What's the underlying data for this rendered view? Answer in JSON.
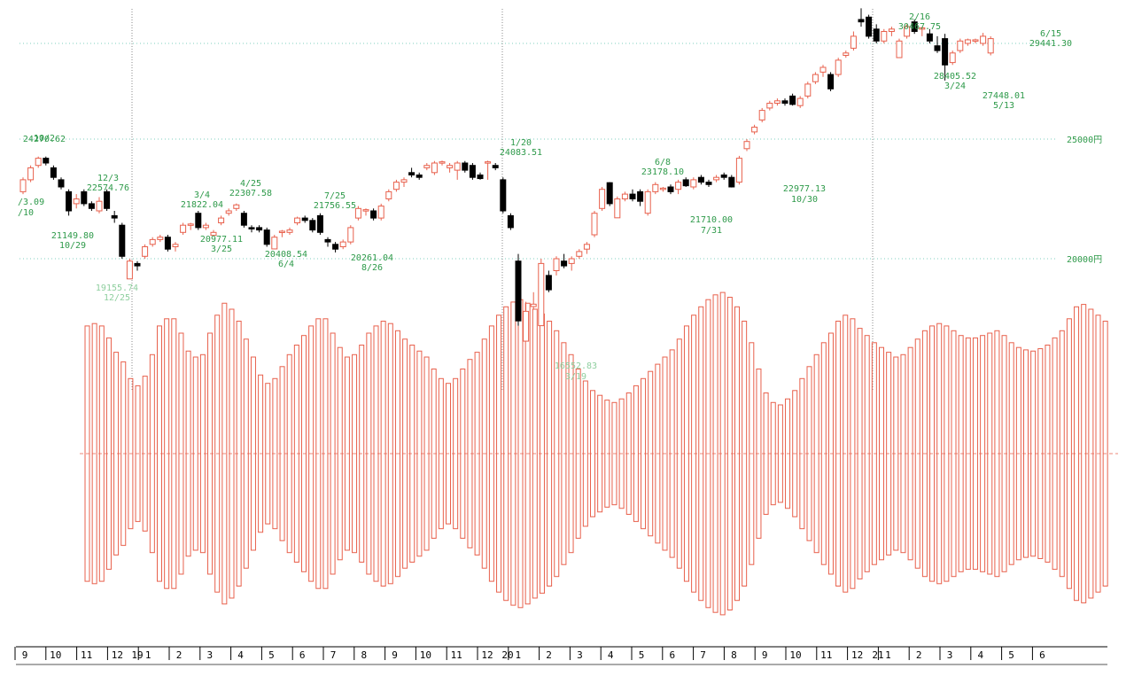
{
  "chart_data": {
    "type": "candlestick",
    "price_axis": {
      "ticks": [
        {
          "value": 25000,
          "label": "25000円"
        },
        {
          "value": 20000,
          "label": "20000円"
        }
      ],
      "extra_gridline_value": 29000
    },
    "year_labels": [
      "19",
      "20",
      "21"
    ],
    "month_labels": [
      "9",
      "10",
      "11",
      "12",
      "1",
      "2",
      "3",
      "4",
      "5",
      "6",
      "7",
      "8",
      "9",
      "10",
      "11",
      "12",
      "1",
      "2",
      "3",
      "4",
      "5",
      "6",
      "7",
      "8",
      "9",
      "10",
      "11",
      "12",
      "1",
      "2",
      "3",
      "4",
      "5",
      "6"
    ],
    "series": [
      {
        "name": "weekly candles",
        "candles": [
          [
            22800,
            23400,
            22700,
            23300
          ],
          [
            23300,
            23900,
            23200,
            23800
          ],
          [
            23900,
            24271,
            23800,
            24200
          ],
          [
            24200,
            24271,
            23900,
            24000
          ],
          [
            23800,
            23900,
            23300,
            23400
          ],
          [
            23300,
            23400,
            22900,
            23000
          ],
          [
            22800,
            22900,
            21800,
            22000
          ],
          [
            22300,
            22700,
            22100,
            22500
          ],
          [
            22800,
            22900,
            22200,
            22300
          ],
          [
            22300,
            22400,
            22000,
            22100
          ],
          [
            22000,
            22575,
            21900,
            22400
          ],
          [
            22800,
            22900,
            22000,
            22100
          ],
          [
            21800,
            22000,
            21500,
            21700
          ],
          [
            21400,
            21500,
            20000,
            20100
          ],
          [
            19156,
            20000,
            19156,
            19900
          ],
          [
            19800,
            19900,
            19500,
            19700
          ],
          [
            20100,
            20600,
            20000,
            20500
          ],
          [
            20600,
            20900,
            20500,
            20800
          ],
          [
            20800,
            21000,
            20700,
            20900
          ],
          [
            20900,
            21000,
            20300,
            20400
          ],
          [
            20500,
            20700,
            20300,
            20600
          ],
          [
            21100,
            21500,
            21000,
            21400
          ],
          [
            21400,
            21500,
            21200,
            21450
          ],
          [
            21900,
            22000,
            21200,
            21300
          ],
          [
            21300,
            21500,
            21200,
            21400
          ],
          [
            20977,
            21200,
            20977,
            21100
          ],
          [
            21500,
            21800,
            21400,
            21700
          ],
          [
            21900,
            22100,
            21800,
            22000
          ],
          [
            22100,
            22308,
            22000,
            22250
          ],
          [
            21900,
            22000,
            21300,
            21400
          ],
          [
            21300,
            21400,
            21100,
            21250
          ],
          [
            21300,
            21400,
            21100,
            21200
          ],
          [
            21200,
            21300,
            20500,
            20600
          ],
          [
            20409,
            21000,
            20409,
            20900
          ],
          [
            21100,
            21200,
            20900,
            21150
          ],
          [
            21100,
            21300,
            21000,
            21200
          ],
          [
            21500,
            21757,
            21400,
            21700
          ],
          [
            21700,
            21800,
            21500,
            21600
          ],
          [
            21600,
            21700,
            21100,
            21200
          ],
          [
            21800,
            21900,
            21000,
            21100
          ],
          [
            20800,
            20900,
            20500,
            20700
          ],
          [
            20600,
            20700,
            20261,
            20400
          ],
          [
            20500,
            20800,
            20400,
            20700
          ],
          [
            20700,
            21400,
            20600,
            21300
          ],
          [
            21700,
            22200,
            21600,
            22100
          ],
          [
            22000,
            22100,
            21800,
            22050
          ],
          [
            22000,
            22100,
            21600,
            21700
          ],
          [
            21700,
            22300,
            21600,
            22200
          ],
          [
            22500,
            22900,
            22400,
            22800
          ],
          [
            22900,
            23300,
            22800,
            23200
          ],
          [
            23200,
            23400,
            23000,
            23300
          ],
          [
            23600,
            23800,
            23400,
            23500
          ],
          [
            23500,
            23600,
            23300,
            23400
          ],
          [
            23800,
            24000,
            23700,
            23900
          ],
          [
            23600,
            24084,
            23500,
            24000
          ],
          [
            24000,
            24100,
            23900,
            24050
          ],
          [
            23800,
            24000,
            23600,
            23900
          ],
          [
            23700,
            24084,
            23300,
            24000
          ],
          [
            24000,
            24084,
            23600,
            23700
          ],
          [
            23900,
            24000,
            23300,
            23400
          ],
          [
            23500,
            23600,
            23300,
            23350
          ],
          [
            24000,
            24100,
            23300,
            24050
          ],
          [
            23900,
            24000,
            23700,
            23800
          ],
          [
            23300,
            23400,
            21900,
            22000
          ],
          [
            21800,
            21900,
            21200,
            21300
          ],
          [
            19900,
            20200,
            17200,
            17400
          ],
          [
            16553,
            18200,
            16553,
            17800
          ],
          [
            18000,
            18600,
            17900,
            18100
          ],
          [
            17200,
            20000,
            17200,
            19800
          ],
          [
            19300,
            19500,
            18600,
            18700
          ],
          [
            19500,
            20100,
            19300,
            20000
          ],
          [
            19900,
            20200,
            19600,
            19700
          ],
          [
            19800,
            20100,
            19500,
            20000
          ],
          [
            20100,
            20400,
            20000,
            20300
          ],
          [
            20400,
            20700,
            20200,
            20600
          ],
          [
            21000,
            22000,
            20900,
            21900
          ],
          [
            22100,
            23000,
            22000,
            22900
          ],
          [
            23178,
            23200,
            22200,
            22300
          ],
          [
            21710,
            22600,
            21710,
            22500
          ],
          [
            22500,
            22800,
            22400,
            22700
          ],
          [
            22700,
            22900,
            22400,
            22500
          ],
          [
            22800,
            22900,
            22200,
            22400
          ],
          [
            21900,
            22900,
            21800,
            22800
          ],
          [
            22800,
            23200,
            22700,
            23100
          ],
          [
            22900,
            23000,
            22800,
            22950
          ],
          [
            23000,
            23100,
            22700,
            22800
          ],
          [
            22900,
            23300,
            22700,
            23200
          ],
          [
            23300,
            23400,
            23000,
            23050
          ],
          [
            23000,
            23400,
            22900,
            23300
          ],
          [
            23400,
            23500,
            23100,
            23200
          ],
          [
            23200,
            23300,
            23000,
            23100
          ],
          [
            23300,
            23500,
            23200,
            23400
          ],
          [
            23500,
            23600,
            23300,
            23400
          ],
          [
            23400,
            23500,
            22977,
            23000
          ],
          [
            23200,
            24300,
            23100,
            24200
          ],
          [
            24600,
            25000,
            24500,
            24900
          ],
          [
            25300,
            25600,
            25200,
            25500
          ],
          [
            25800,
            26300,
            25700,
            26200
          ],
          [
            26300,
            26600,
            26200,
            26500
          ],
          [
            26500,
            26700,
            26400,
            26600
          ],
          [
            26600,
            26700,
            26400,
            26500
          ],
          [
            26800,
            26900,
            26400,
            26450
          ],
          [
            26400,
            26800,
            26300,
            26700
          ],
          [
            26800,
            27400,
            26700,
            27300
          ],
          [
            27400,
            27800,
            27300,
            27700
          ],
          [
            27800,
            28100,
            27600,
            28000
          ],
          [
            27700,
            27800,
            27000,
            27100
          ],
          [
            27700,
            28400,
            27600,
            28300
          ],
          [
            28500,
            28700,
            28400,
            28600
          ],
          [
            28800,
            29500,
            28700,
            29300
          ],
          [
            30000,
            30468,
            29700,
            29900
          ],
          [
            30100,
            30200,
            29200,
            29300
          ],
          [
            29600,
            29800,
            29000,
            29100
          ],
          [
            29100,
            29600,
            29000,
            29500
          ],
          [
            29500,
            29700,
            29300,
            29600
          ],
          [
            28406,
            29200,
            28406,
            29100
          ],
          [
            29300,
            29800,
            29200,
            29700
          ],
          [
            29900,
            30000,
            29400,
            29500
          ],
          [
            29600,
            29700,
            29300,
            29650
          ],
          [
            29400,
            29600,
            29000,
            29100
          ],
          [
            28900,
            29300,
            28600,
            28700
          ],
          [
            29200,
            29400,
            27448,
            28100
          ],
          [
            28200,
            28700,
            28100,
            28600
          ],
          [
            28700,
            29200,
            28600,
            29100
          ],
          [
            29000,
            29200,
            28900,
            29150
          ],
          [
            29100,
            29200,
            29000,
            29150
          ],
          [
            29000,
            29441,
            28900,
            29300
          ],
          [
            28600,
            29300,
            28500,
            29200
          ]
        ]
      },
      {
        "name": "oscillator bars",
        "values": [
          0.66,
          0.68,
          0.66,
          0.56,
          0.44,
          0.36,
          0.22,
          0.16,
          0.24,
          0.42,
          0.66,
          0.72,
          0.72,
          0.6,
          0.45,
          0.4,
          0.42,
          0.6,
          0.75,
          0.85,
          0.8,
          0.7,
          0.55,
          0.4,
          0.25,
          0.18,
          0.22,
          0.32,
          0.42,
          0.5,
          0.58,
          0.66,
          0.72,
          0.72,
          0.6,
          0.48,
          0.4,
          0.42,
          0.5,
          0.6,
          0.66,
          0.7,
          0.68,
          0.62,
          0.55,
          0.5,
          0.45,
          0.4,
          0.3,
          0.22,
          0.18,
          0.22,
          0.3,
          0.38,
          0.44,
          0.55,
          0.66,
          0.75,
          0.82,
          0.86,
          0.88,
          0.85,
          0.8,
          0.76,
          0.7,
          0.62,
          0.52,
          0.42,
          0.3,
          0.2,
          0.12,
          0.08,
          0.04,
          0.02,
          0.05,
          0.1,
          0.16,
          0.22,
          0.28,
          0.34,
          0.4,
          0.46,
          0.55,
          0.66,
          0.75,
          0.82,
          0.88,
          0.92,
          0.94,
          0.9,
          0.82,
          0.7,
          0.52,
          0.3,
          0.1,
          0.02,
          0.0,
          0.05,
          0.12,
          0.22,
          0.32,
          0.42,
          0.52,
          0.6,
          0.7,
          0.75,
          0.72,
          0.64,
          0.58,
          0.52,
          0.48,
          0.44,
          0.4,
          0.42,
          0.48,
          0.55,
          0.62,
          0.66,
          0.68,
          0.66,
          0.62,
          0.58,
          0.56,
          0.56,
          0.58,
          0.6,
          0.62,
          0.58,
          0.52,
          0.48,
          0.46,
          0.45,
          0.47,
          0.5,
          0.56,
          0.62,
          0.72,
          0.82,
          0.84,
          0.8,
          0.75,
          0.7
        ]
      }
    ],
    "annotations": [
      {
        "date": "10/2",
        "value": "24270.62"
      },
      {
        "date": "10/29",
        "value": "21149.80"
      },
      {
        "date": "12/3",
        "value": "22574.76"
      },
      {
        "date": "12/25",
        "value": "19155.74"
      },
      {
        "date": "3/4",
        "value": "21822.04"
      },
      {
        "date": "3/25",
        "value": "20977.11"
      },
      {
        "date": "4/25",
        "value": "22307.58"
      },
      {
        "date": "6/4",
        "value": "20408.54"
      },
      {
        "date": "7/25",
        "value": "21756.55"
      },
      {
        "date": "8/26",
        "value": "20261.04"
      },
      {
        "date": "1/20",
        "value": "24083.51"
      },
      {
        "date": "3/19",
        "value": "16552.83"
      },
      {
        "date": "6/8",
        "value": "23178.10"
      },
      {
        "date": "7/31",
        "value": "21710.00"
      },
      {
        "date": "10/30",
        "value": "22977.13"
      },
      {
        "date": "2/16",
        "value": "30467.75"
      },
      {
        "date": "3/24",
        "value": "28405.52"
      },
      {
        "date": "5/13",
        "value": "27448.01"
      },
      {
        "date": "6/15",
        "value": "29441.30"
      },
      {
        "date": "/10",
        "value": "/3.09"
      }
    ],
    "colors": {
      "up": "#e8604c",
      "down": "#000000",
      "annotation": "#2e9a4a",
      "annotation_faded": "#8fcf9f",
      "gridline": "#7fcfbf",
      "oscillator": "#e8604c",
      "axis_text": "#000000"
    }
  }
}
